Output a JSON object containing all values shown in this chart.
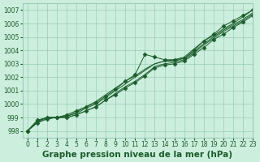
{
  "title": "Graphe pression niveau de la mer (hPa)",
  "bg_color": "#cceedd",
  "grid_color": "#99ccbb",
  "line_color": "#1a5c2a",
  "xlim": [
    -0.5,
    23
  ],
  "ylim": [
    997.5,
    1007.5
  ],
  "yticks": [
    998,
    999,
    1000,
    1001,
    1002,
    1003,
    1004,
    1005,
    1006,
    1007
  ],
  "xticks": [
    0,
    1,
    2,
    3,
    4,
    5,
    6,
    7,
    8,
    9,
    10,
    11,
    12,
    13,
    14,
    15,
    16,
    17,
    18,
    19,
    20,
    21,
    22,
    23
  ],
  "series": [
    {
      "y": [
        998.0,
        998.8,
        999.0,
        999.0,
        999.2,
        999.5,
        999.8,
        1000.1,
        1000.6,
        1001.1,
        1001.7,
        1002.2,
        1003.7,
        1003.5,
        1003.3,
        1003.3,
        1003.4,
        1004.0,
        1004.7,
        1005.2,
        1005.8,
        1006.2,
        1006.6,
        1007.0
      ],
      "marker": true
    },
    {
      "y": [
        998.0,
        998.7,
        999.0,
        999.0,
        999.1,
        999.4,
        999.8,
        1000.2,
        1000.7,
        1001.2,
        1001.7,
        1002.1,
        1002.6,
        1003.0,
        1003.2,
        1003.3,
        1003.5,
        1004.1,
        1004.7,
        1005.1,
        1005.6,
        1006.0,
        1006.5,
        1007.0
      ],
      "marker": false
    },
    {
      "y": [
        998.0,
        998.7,
        999.0,
        999.0,
        999.1,
        999.3,
        999.7,
        1000.0,
        1000.5,
        1001.0,
        1001.5,
        1002.0,
        1002.5,
        1003.0,
        1003.2,
        1003.2,
        1003.4,
        1003.9,
        1004.5,
        1005.0,
        1005.5,
        1005.9,
        1006.3,
        1006.8
      ],
      "marker": false
    },
    {
      "y": [
        998.0,
        998.6,
        998.9,
        999.0,
        999.0,
        999.2,
        999.5,
        999.8,
        1000.3,
        1000.8,
        1001.3,
        1001.7,
        1002.2,
        1002.8,
        1003.0,
        1003.1,
        1003.3,
        1003.8,
        1004.4,
        1004.9,
        1005.4,
        1005.8,
        1006.2,
        1006.7
      ],
      "marker": false
    },
    {
      "y": [
        998.0,
        998.6,
        998.9,
        999.0,
        999.0,
        999.2,
        999.5,
        999.8,
        1000.3,
        1000.7,
        1001.2,
        1001.6,
        1002.1,
        1002.7,
        1002.9,
        1003.0,
        1003.2,
        1003.7,
        1004.2,
        1004.8,
        1005.2,
        1005.7,
        1006.1,
        1006.6
      ],
      "marker": true
    }
  ],
  "marker_symbol": "D",
  "marker_size": 2.5,
  "line_width": 0.7,
  "title_fontsize": 7.5,
  "tick_fontsize": 5.5
}
